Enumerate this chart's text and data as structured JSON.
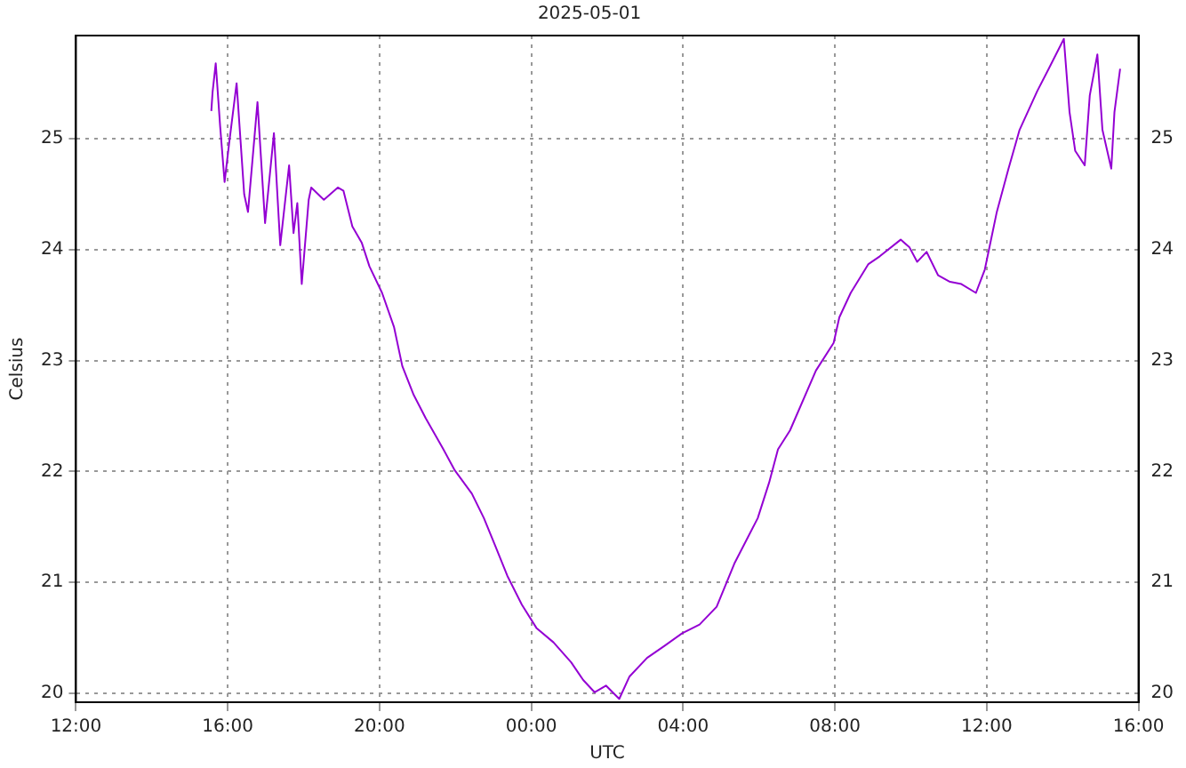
{
  "chart_data": {
    "type": "line",
    "title": "2025-05-01",
    "xlabel": "UTC",
    "ylabel": "Celsius",
    "x": [
      "2025-05-01T15:34",
      "2025-05-01T15:36",
      "2025-05-01T15:41",
      "2025-05-01T15:48",
      "2025-05-01T15:55",
      "2025-05-01T16:02",
      "2025-05-01T16:14",
      "2025-05-01T16:26",
      "2025-05-01T16:32",
      "2025-05-01T16:47",
      "2025-05-01T16:59",
      "2025-05-01T17:13",
      "2025-05-01T17:23",
      "2025-05-01T17:37",
      "2025-05-01T17:44",
      "2025-05-01T17:50",
      "2025-05-01T17:57",
      "2025-05-01T18:08",
      "2025-05-01T18:12",
      "2025-05-01T18:32",
      "2025-05-01T18:54",
      "2025-05-01T19:03",
      "2025-05-01T19:17",
      "2025-05-01T19:32",
      "2025-05-01T19:44",
      "2025-05-01T20:04",
      "2025-05-01T20:23",
      "2025-05-01T20:36",
      "2025-05-01T20:54",
      "2025-05-01T21:13",
      "2025-05-01T21:40",
      "2025-05-01T21:59",
      "2025-05-01T22:26",
      "2025-05-01T22:45",
      "2025-05-01T23:03",
      "2025-05-01T23:22",
      "2025-05-01T23:45",
      "2025-05-02T00:08",
      "2025-05-02T00:35",
      "2025-05-02T01:03",
      "2025-05-02T01:22",
      "2025-05-02T01:40",
      "2025-05-02T01:58",
      "2025-05-02T02:19",
      "2025-05-02T02:35",
      "2025-05-02T03:03",
      "2025-05-02T03:31",
      "2025-05-02T03:58",
      "2025-05-02T04:26",
      "2025-05-02T04:53",
      "2025-05-02T05:21",
      "2025-05-02T05:40",
      "2025-05-02T05:58",
      "2025-05-02T06:16",
      "2025-05-02T06:30",
      "2025-05-02T06:49",
      "2025-05-02T07:30",
      "2025-05-02T07:58",
      "2025-05-02T08:07",
      "2025-05-02T08:25",
      "2025-05-02T08:53",
      "2025-05-02T09:11",
      "2025-05-02T09:44",
      "2025-05-02T09:58",
      "2025-05-02T10:10",
      "2025-05-02T10:25",
      "2025-05-02T10:43",
      "2025-05-02T11:02",
      "2025-05-02T11:20",
      "2025-05-02T11:43",
      "2025-05-02T11:57",
      "2025-05-02T12:16",
      "2025-05-02T12:34",
      "2025-05-02T12:52",
      "2025-05-02T13:20",
      "2025-05-02T13:38",
      "2025-05-02T14:02",
      "2025-05-02T14:11",
      "2025-05-02T14:20",
      "2025-05-02T14:35",
      "2025-05-02T14:43",
      "2025-05-02T14:55",
      "2025-05-02T15:03",
      "2025-05-02T15:17",
      "2025-05-02T15:22",
      "2025-05-02T15:31"
    ],
    "series": [
      {
        "color": "#9400d3",
        "values": [
          25.25,
          25.42,
          25.68,
          25.11,
          24.61,
          24.95,
          25.5,
          24.5,
          24.34,
          25.33,
          24.24,
          25.05,
          24.04,
          24.76,
          24.15,
          24.42,
          23.69,
          24.45,
          24.56,
          24.45,
          24.56,
          24.53,
          24.21,
          24.06,
          23.85,
          23.61,
          23.3,
          22.95,
          22.69,
          22.48,
          22.21,
          22.01,
          21.8,
          21.58,
          21.33,
          21.06,
          20.8,
          20.59,
          20.46,
          20.28,
          20.12,
          20.01,
          20.07,
          19.95,
          20.15,
          20.32,
          20.43,
          20.54,
          20.62,
          20.78,
          21.17,
          21.38,
          21.58,
          21.9,
          22.2,
          22.37,
          22.91,
          23.16,
          23.39,
          23.61,
          23.87,
          23.94,
          24.09,
          24.02,
          23.89,
          23.98,
          23.77,
          23.71,
          23.69,
          23.61,
          23.82,
          24.34,
          24.72,
          25.08,
          25.43,
          25.63,
          25.9,
          25.24,
          24.89,
          24.76,
          25.39,
          25.76,
          25.08,
          24.73,
          25.24,
          25.63
        ]
      }
    ],
    "xlim": [
      "2025-05-01T12:00",
      "2025-05-02T16:00"
    ],
    "xticks": [
      {
        "value": "2025-05-01T12:00",
        "label": "12:00"
      },
      {
        "value": "2025-05-01T16:00",
        "label": "16:00"
      },
      {
        "value": "2025-05-01T20:00",
        "label": "20:00"
      },
      {
        "value": "2025-05-02T00:00",
        "label": "00:00"
      },
      {
        "value": "2025-05-02T04:00",
        "label": "04:00"
      },
      {
        "value": "2025-05-02T08:00",
        "label": "08:00"
      },
      {
        "value": "2025-05-02T12:00",
        "label": "12:00"
      },
      {
        "value": "2025-05-02T16:00",
        "label": "16:00"
      }
    ],
    "ylim": [
      19.92,
      25.93
    ],
    "yticks": [
      20,
      21,
      22,
      23,
      24,
      25
    ],
    "y2lim": [
      19.92,
      25.93
    ],
    "y2ticks": [
      20,
      21,
      22,
      23,
      24,
      25
    ],
    "grid": true,
    "legend": false,
    "marker": "none",
    "line_style": "solid"
  }
}
